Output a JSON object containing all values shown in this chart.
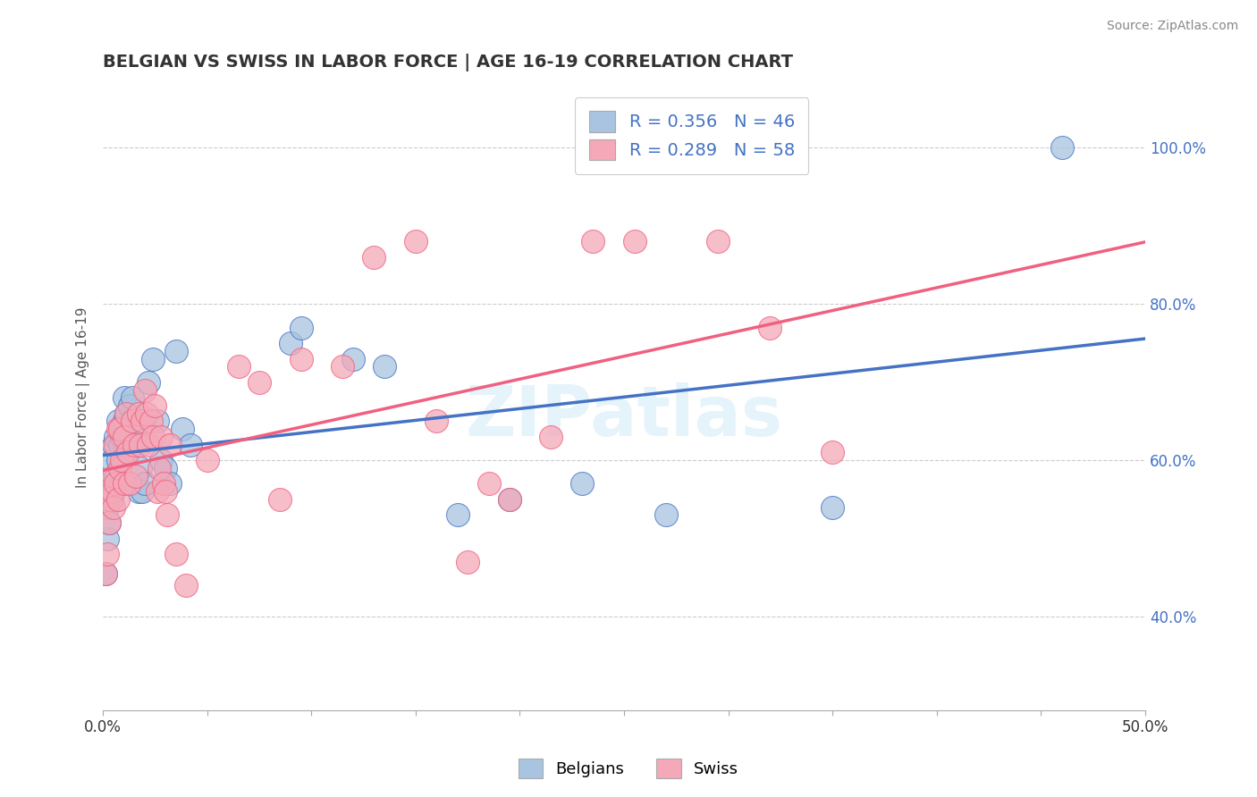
{
  "title": "BELGIAN VS SWISS IN LABOR FORCE | AGE 16-19 CORRELATION CHART",
  "source": "Source: ZipAtlas.com",
  "ylabel": "In Labor Force | Age 16-19",
  "x_min": 0.0,
  "x_max": 0.5,
  "y_min": 0.28,
  "y_max": 1.08,
  "y_ticks_right": [
    0.4,
    0.6,
    0.8,
    1.0
  ],
  "y_tick_labels_right": [
    "40.0%",
    "60.0%",
    "80.0%",
    "100.0%"
  ],
  "belgian_color": "#a8c4e0",
  "swiss_color": "#f4a8b8",
  "belgian_line_color": "#4472c4",
  "swiss_line_color": "#f06080",
  "legend_r_belgian": "R = 0.356",
  "legend_n_belgian": "N = 46",
  "legend_r_swiss": "R = 0.289",
  "legend_n_swiss": "N = 58",
  "watermark": "ZIPatlas",
  "belgian_points": [
    [
      0.001,
      0.455
    ],
    [
      0.002,
      0.5
    ],
    [
      0.002,
      0.54
    ],
    [
      0.003,
      0.52
    ],
    [
      0.003,
      0.57
    ],
    [
      0.004,
      0.55
    ],
    [
      0.004,
      0.6
    ],
    [
      0.005,
      0.56
    ],
    [
      0.005,
      0.62
    ],
    [
      0.006,
      0.58
    ],
    [
      0.006,
      0.63
    ],
    [
      0.007,
      0.6
    ],
    [
      0.007,
      0.65
    ],
    [
      0.008,
      0.62
    ],
    [
      0.009,
      0.63
    ],
    [
      0.01,
      0.65
    ],
    [
      0.01,
      0.68
    ],
    [
      0.011,
      0.66
    ],
    [
      0.012,
      0.63
    ],
    [
      0.013,
      0.67
    ],
    [
      0.014,
      0.68
    ],
    [
      0.015,
      0.65
    ],
    [
      0.016,
      0.63
    ],
    [
      0.017,
      0.56
    ],
    [
      0.018,
      0.59
    ],
    [
      0.019,
      0.56
    ],
    [
      0.02,
      0.57
    ],
    [
      0.022,
      0.7
    ],
    [
      0.024,
      0.73
    ],
    [
      0.026,
      0.65
    ],
    [
      0.028,
      0.6
    ],
    [
      0.03,
      0.59
    ],
    [
      0.032,
      0.57
    ],
    [
      0.035,
      0.74
    ],
    [
      0.038,
      0.64
    ],
    [
      0.042,
      0.62
    ],
    [
      0.09,
      0.75
    ],
    [
      0.095,
      0.77
    ],
    [
      0.12,
      0.73
    ],
    [
      0.135,
      0.72
    ],
    [
      0.17,
      0.53
    ],
    [
      0.195,
      0.55
    ],
    [
      0.23,
      0.57
    ],
    [
      0.27,
      0.53
    ],
    [
      0.35,
      0.54
    ],
    [
      0.46,
      1.0
    ]
  ],
  "swiss_points": [
    [
      0.001,
      0.455
    ],
    [
      0.002,
      0.48
    ],
    [
      0.003,
      0.52
    ],
    [
      0.003,
      0.55
    ],
    [
      0.004,
      0.56
    ],
    [
      0.005,
      0.54
    ],
    [
      0.005,
      0.58
    ],
    [
      0.006,
      0.57
    ],
    [
      0.006,
      0.62
    ],
    [
      0.007,
      0.55
    ],
    [
      0.007,
      0.64
    ],
    [
      0.008,
      0.59
    ],
    [
      0.008,
      0.64
    ],
    [
      0.009,
      0.6
    ],
    [
      0.01,
      0.57
    ],
    [
      0.01,
      0.63
    ],
    [
      0.011,
      0.66
    ],
    [
      0.012,
      0.61
    ],
    [
      0.013,
      0.57
    ],
    [
      0.014,
      0.65
    ],
    [
      0.015,
      0.62
    ],
    [
      0.016,
      0.58
    ],
    [
      0.017,
      0.66
    ],
    [
      0.018,
      0.62
    ],
    [
      0.019,
      0.65
    ],
    [
      0.02,
      0.69
    ],
    [
      0.021,
      0.66
    ],
    [
      0.022,
      0.62
    ],
    [
      0.023,
      0.65
    ],
    [
      0.024,
      0.63
    ],
    [
      0.025,
      0.67
    ],
    [
      0.026,
      0.56
    ],
    [
      0.027,
      0.59
    ],
    [
      0.028,
      0.63
    ],
    [
      0.029,
      0.57
    ],
    [
      0.03,
      0.56
    ],
    [
      0.031,
      0.53
    ],
    [
      0.032,
      0.62
    ],
    [
      0.035,
      0.48
    ],
    [
      0.04,
      0.44
    ],
    [
      0.05,
      0.6
    ],
    [
      0.065,
      0.72
    ],
    [
      0.075,
      0.7
    ],
    [
      0.085,
      0.55
    ],
    [
      0.095,
      0.73
    ],
    [
      0.115,
      0.72
    ],
    [
      0.13,
      0.86
    ],
    [
      0.15,
      0.88
    ],
    [
      0.16,
      0.65
    ],
    [
      0.175,
      0.47
    ],
    [
      0.185,
      0.57
    ],
    [
      0.195,
      0.55
    ],
    [
      0.215,
      0.63
    ],
    [
      0.235,
      0.88
    ],
    [
      0.255,
      0.88
    ],
    [
      0.295,
      0.88
    ],
    [
      0.32,
      0.77
    ],
    [
      0.35,
      0.61
    ]
  ]
}
